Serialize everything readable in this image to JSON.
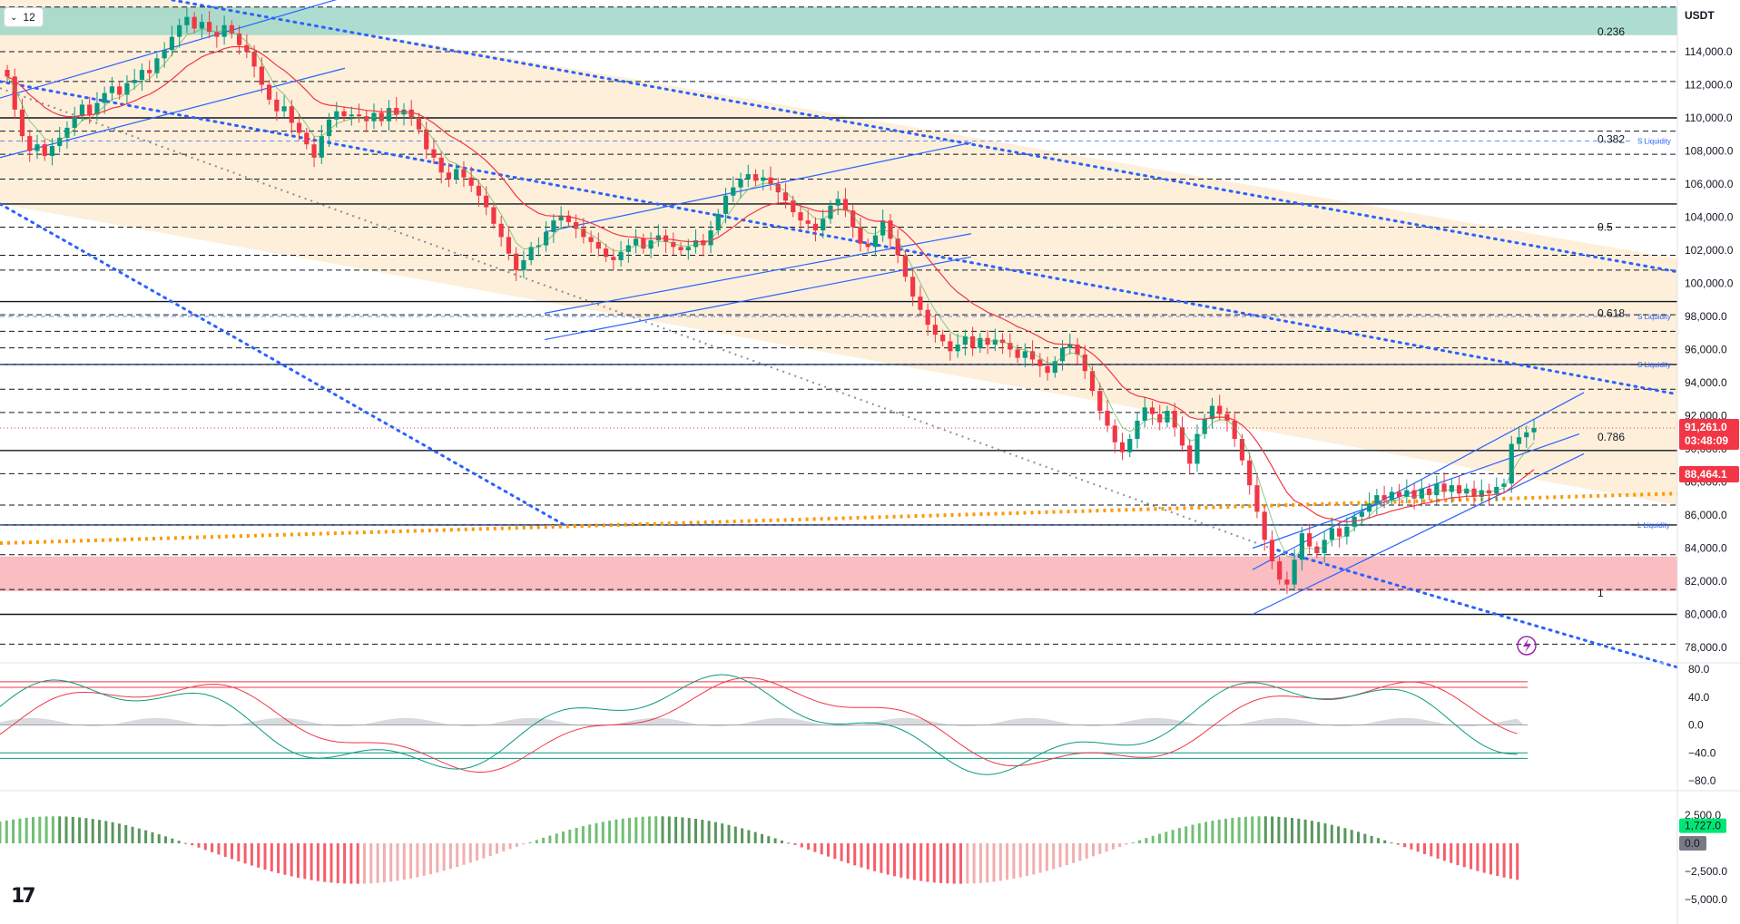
{
  "interval": {
    "label": "12"
  },
  "currency": "USDT",
  "colors": {
    "bull": "#089981",
    "bear": "#f23645",
    "ema": "#f23645",
    "ema_fast": "#4caf50",
    "channel": "#2962ff",
    "dotted_trend": "#2962ff",
    "orange_trend": "#ff9800",
    "demand_zone": "#f7a7ad",
    "top_zone": "#9fd7c8",
    "fib_fill": "#fdebd1"
  },
  "chart_data": [
    {
      "type": "candlestick",
      "name": "price",
      "y_axis_ticks": [
        "114,000.0",
        "112,000.0",
        "110,000.0",
        "108,000.0",
        "106,000.0",
        "104,000.0",
        "102,000.0",
        "100,000.0",
        "98,000.0",
        "96,000.0",
        "94,000.0",
        "92,000.0",
        "90,000.0",
        "88,000.0",
        "86,000.0",
        "84,000.0",
        "82,000.0",
        "80,000.0",
        "78,000.0"
      ],
      "ylim": [
        77200,
        117000
      ],
      "last_price": "91,261.0",
      "countdown": "03:48:09",
      "secondary_price": "88,464.1",
      "fib_levels": [
        {
          "label": "0.236",
          "price": 115200
        },
        {
          "label": "0.382",
          "price": 108700
        },
        {
          "label": "0.5",
          "price": 103400
        },
        {
          "label": "0.618",
          "price": 98200
        },
        {
          "label": "0.786",
          "price": 90700
        },
        {
          "label": "1",
          "price": 81300
        }
      ],
      "liquidity_labels": [
        {
          "label": "S Liquidity",
          "price": 108600
        },
        {
          "label": "S Liquidity",
          "price": 98000
        },
        {
          "label": "S Liquidity",
          "price": 95100
        },
        {
          "label": "L Liquidity",
          "price": 85400
        }
      ],
      "solid_levels": [
        110000,
        104800,
        98900,
        95100,
        89900,
        85400,
        80000
      ],
      "dashed_levels": [
        116700,
        114000,
        112200,
        109200,
        107800,
        106300,
        103400,
        101700,
        100800,
        98100,
        97100,
        96100,
        93600,
        92200,
        88500,
        86600,
        83600,
        81500,
        78200
      ],
      "demand_zone": [
        81400,
        83500
      ],
      "top_zone": [
        115000,
        116700
      ],
      "closes": [
        112500,
        110500,
        108900,
        108000,
        108400,
        107700,
        108300,
        108800,
        109400,
        110100,
        110800,
        110200,
        110900,
        111500,
        111900,
        111400,
        112100,
        112300,
        112900,
        112700,
        113600,
        114100,
        114900,
        115600,
        116100,
        115400,
        115800,
        115200,
        114900,
        115600,
        115100,
        114400,
        114000,
        113100,
        112000,
        111100,
        110400,
        110700,
        109700,
        109100,
        108400,
        107600,
        108900,
        109900,
        110400,
        110100,
        110200,
        110100,
        109800,
        110300,
        109800,
        110600,
        110200,
        110500,
        110000,
        109300,
        108100,
        107600,
        106700,
        106300,
        106900,
        106400,
        105900,
        105300,
        104600,
        103600,
        102800,
        101800,
        100800,
        101400,
        102200,
        102300,
        103100,
        103800,
        104100,
        103700,
        103300,
        102800,
        102500,
        102100,
        101600,
        101400,
        101900,
        102300,
        102700,
        102100,
        102600,
        102900,
        102500,
        102200,
        102000,
        102200,
        102600,
        102300,
        103200,
        104200,
        105300,
        105800,
        106300,
        106600,
        106200,
        106400,
        106000,
        105500,
        105000,
        104300,
        103800,
        103600,
        103200,
        103900,
        104700,
        105100,
        104400,
        103400,
        102400,
        102200,
        102900,
        103800,
        102700,
        101700,
        100400,
        99200,
        98400,
        97500,
        96900,
        96500,
        95900,
        96300,
        96800,
        96100,
        96700,
        96300,
        96600,
        96400,
        96000,
        95500,
        95900,
        95400,
        95000,
        94600,
        95300,
        96100,
        96300,
        95700,
        94700,
        93500,
        92300,
        91400,
        90400,
        89800,
        90600,
        91700,
        92500,
        92100,
        91600,
        92300,
        91300,
        90200,
        89100,
        90900,
        91800,
        92600,
        92100,
        91700,
        90600,
        89300,
        87800,
        86200,
        84500,
        83200,
        82100,
        81800,
        83300,
        84900,
        84100,
        83700,
        84500,
        85200,
        84700,
        85300,
        85900,
        86200,
        86700,
        87200,
        86900,
        87400,
        87100,
        87500,
        87000,
        87600,
        87200,
        87900,
        87400,
        87800,
        87300,
        87600,
        87100,
        87500,
        87300,
        87700,
        87900,
        90300,
        90700,
        91000,
        91261
      ]
    },
    {
      "type": "line",
      "name": "stochastic-rsi",
      "y_axis_ticks": [
        "80.0",
        "40.0",
        "0.0",
        "−40.0",
        "−80.0"
      ],
      "ylim": [
        -80,
        80
      ]
    },
    {
      "type": "bar",
      "name": "macd-histogram",
      "y_axis_ticks": [
        "2,500.0",
        "−2,500.0",
        "−5,000.0"
      ],
      "ylim": [
        -6000,
        3500
      ],
      "value_label": "1,727.0",
      "zero_label": "0.0"
    }
  ]
}
